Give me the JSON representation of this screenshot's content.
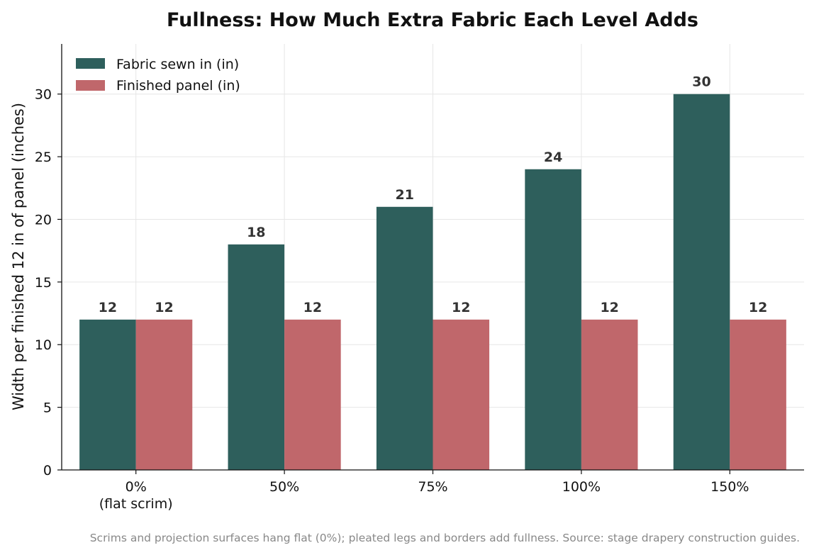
{
  "chart_data": {
    "type": "bar",
    "title": "Fullness: How Much Extra Fabric Each Level Adds",
    "xlabel": "",
    "ylabel": "Width per finished 12 in of panel (inches)",
    "categories": [
      [
        "0%",
        "(flat scrim)"
      ],
      [
        "50%"
      ],
      [
        "75%"
      ],
      [
        "100%"
      ],
      [
        "150%"
      ]
    ],
    "series": [
      {
        "name": "Fabric sewn in (in)",
        "color": "#2e5f5c",
        "values": [
          12,
          18,
          21,
          24,
          30
        ]
      },
      {
        "name": "Finished panel (in)",
        "color": "#c0676b",
        "values": [
          12,
          12,
          12,
          12,
          12
        ]
      }
    ],
    "ylim": [
      0,
      34
    ],
    "yticks": [
      0,
      5,
      10,
      15,
      20,
      25,
      30
    ],
    "grid": true,
    "legend_position": "top-left",
    "data_labels": true
  },
  "footnote": "Scrims and projection surfaces hang flat (0%); pleated legs and borders add fullness. Source: stage drapery construction guides."
}
